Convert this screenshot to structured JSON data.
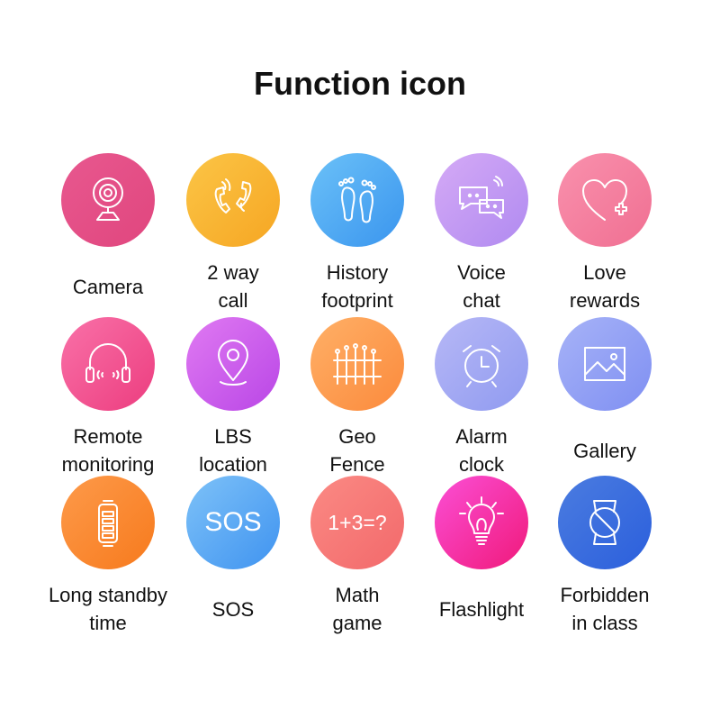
{
  "title": "Function icon",
  "features": [
    {
      "label_lines": [
        "Camera"
      ],
      "icon": "webcam-icon",
      "colors": [
        "#e8588f",
        "#e0467e"
      ]
    },
    {
      "label_lines": [
        "2 way",
        "call"
      ],
      "icon": "phone-call-icon",
      "colors": [
        "#fbc546",
        "#f6a623"
      ]
    },
    {
      "label_lines": [
        "History",
        "footprint"
      ],
      "icon": "footprint-icon",
      "colors": [
        "#6bc1f8",
        "#3a95ee"
      ]
    },
    {
      "label_lines": [
        "Voice",
        "chat"
      ],
      "icon": "chat-bubbles-icon",
      "colors": [
        "#d5aaf6",
        "#b08af0"
      ]
    },
    {
      "label_lines": [
        "Love",
        "rewards"
      ],
      "icon": "heart-plus-icon",
      "colors": [
        "#f991ad",
        "#f06f92"
      ]
    },
    {
      "label_lines": [
        "Remote",
        "monitoring"
      ],
      "icon": "headphones-icon",
      "colors": [
        "#f971a8",
        "#ec3d7f"
      ]
    },
    {
      "label_lines": [
        "LBS",
        "location"
      ],
      "icon": "location-pin-icon",
      "colors": [
        "#e07af2",
        "#b946e6"
      ]
    },
    {
      "label_lines": [
        "Geo",
        "Fence"
      ],
      "icon": "fence-icon",
      "colors": [
        "#ffb067",
        "#fb8a3c"
      ]
    },
    {
      "label_lines": [
        "Alarm",
        "clock"
      ],
      "icon": "alarm-clock-icon",
      "colors": [
        "#b7b8f6",
        "#8f9af0"
      ]
    },
    {
      "label_lines": [
        "Gallery"
      ],
      "icon": "image-icon",
      "colors": [
        "#a7b3f7",
        "#7f8ff2"
      ]
    },
    {
      "label_lines": [
        "Long standby",
        "time"
      ],
      "icon": "battery-icon",
      "colors": [
        "#fd9a4a",
        "#f77a1d"
      ]
    },
    {
      "label_lines": [
        "SOS"
      ],
      "icon": "sos-icon",
      "icon_text": "SOS",
      "colors": [
        "#7ec2f8",
        "#3f93f0"
      ]
    },
    {
      "label_lines": [
        "Math",
        "game"
      ],
      "icon": "math-icon",
      "icon_text": "1+3=?",
      "colors": [
        "#fb8a84",
        "#f2696b"
      ]
    },
    {
      "label_lines": [
        "Flashlight"
      ],
      "icon": "lightbulb-icon",
      "colors": [
        "#fb4fd6",
        "#f0197a"
      ]
    },
    {
      "label_lines": [
        "Forbidden",
        "in class"
      ],
      "icon": "watch-forbidden-icon",
      "colors": [
        "#4b7ce0",
        "#2b5fdc"
      ]
    }
  ]
}
